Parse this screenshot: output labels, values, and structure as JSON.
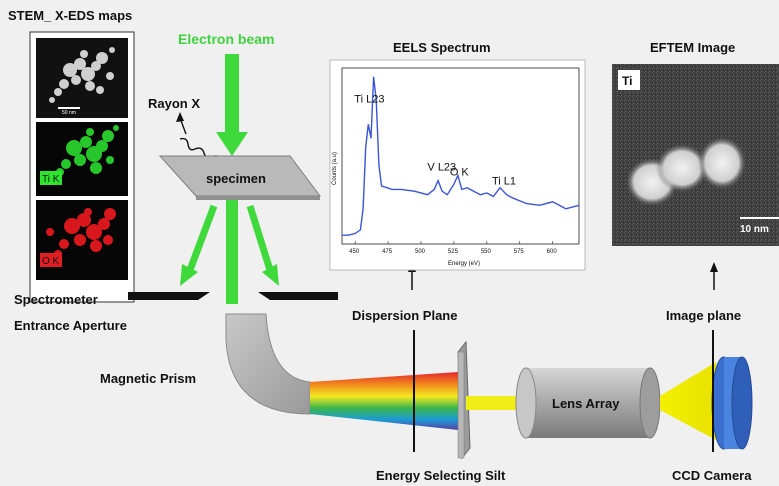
{
  "labels": {
    "stem_title": "STEM_ X-EDS maps",
    "electron_beam": "Electron beam",
    "rayon_x": "Rayon X",
    "specimen": "specimen",
    "eels_title": "EELS Spectrum",
    "eftem_title": "EFTEM Image",
    "spectrometer_line1": "Spectrometer",
    "spectrometer_line2": "Entrance Aperture",
    "dispersion_plane": "Dispersion Plane",
    "image_plane": "Image plane",
    "magnetic_prism": "Magnetic Prism",
    "lens_array": "Lens Array",
    "energy_slit": "Energy Selecting Silt",
    "ccd_camera": "CCD Camera"
  },
  "maps": {
    "ti_label": "Ti K",
    "o_label": "O K",
    "scale_label": "50 nm"
  },
  "eftem": {
    "element": "Ti",
    "scale": "10 nm"
  },
  "chart_data": {
    "type": "line",
    "title": "EELS Spectrum",
    "xlabel": "Energy (eV)",
    "ylabel": "Counts (a.u)",
    "xlim": [
      440,
      620
    ],
    "ylim": [
      0,
      1
    ],
    "xticks": [
      450,
      475,
      500,
      525,
      550,
      575,
      600
    ],
    "series": [
      {
        "x": [
          440,
          445,
          450,
          454,
          456,
          458,
          460,
          462,
          464,
          466,
          468,
          470,
          474,
          478,
          485,
          495,
          505,
          510,
          513,
          516,
          520,
          525,
          528,
          531,
          535,
          540,
          545,
          550,
          555,
          560,
          565,
          570,
          580,
          590,
          600,
          610,
          620
        ],
        "y": [
          0.05,
          0.05,
          0.06,
          0.08,
          0.2,
          0.55,
          0.68,
          0.6,
          0.95,
          0.82,
          0.45,
          0.33,
          0.32,
          0.31,
          0.31,
          0.3,
          0.28,
          0.31,
          0.36,
          0.3,
          0.28,
          0.34,
          0.39,
          0.31,
          0.32,
          0.3,
          0.28,
          0.29,
          0.27,
          0.32,
          0.28,
          0.26,
          0.23,
          0.22,
          0.24,
          0.2,
          0.22
        ]
      }
    ],
    "annotations": [
      {
        "text": "Ti L23",
        "x": 463
      },
      {
        "text": "V L23",
        "x": 514
      },
      {
        "text": "O K",
        "x": 531
      },
      {
        "text": "Ti L1",
        "x": 563
      }
    ]
  }
}
